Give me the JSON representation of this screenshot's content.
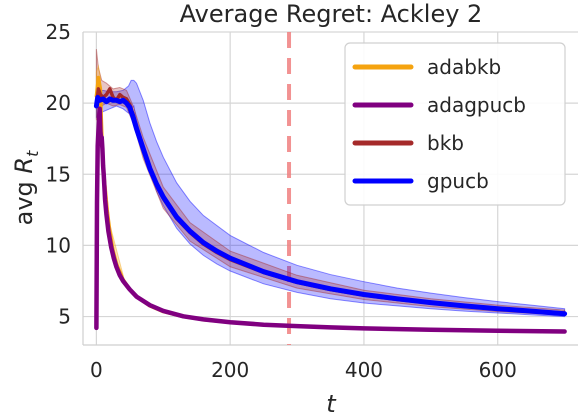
{
  "chart_data": {
    "type": "line",
    "title": "Average Regret: Ackley 2",
    "xlabel": "t",
    "ylabel_main": "avg R",
    "ylabel_sub": "t",
    "xlim": [
      -20,
      720
    ],
    "ylim": [
      3,
      25
    ],
    "xticks": [
      0,
      200,
      400,
      600
    ],
    "yticks": [
      5,
      10,
      15,
      20,
      25
    ],
    "grid": true,
    "legend_position": "top-right",
    "annotations": [
      {
        "type": "vline",
        "x": 288,
        "style": "dashed",
        "color": "#f08080"
      }
    ],
    "series": [
      {
        "name": "adabkb",
        "color": "#f5a30f",
        "points": [
          [
            0,
            20.5
          ],
          [
            3,
            21.8
          ],
          [
            6,
            21.0
          ],
          [
            8,
            18.0
          ],
          [
            10,
            15.5
          ],
          [
            13,
            14.0
          ],
          [
            16,
            12.5
          ],
          [
            20,
            11.0
          ],
          [
            25,
            9.6
          ],
          [
            30,
            8.7
          ],
          [
            40,
            7.6
          ],
          [
            50,
            6.9
          ],
          [
            60,
            6.4
          ],
          [
            80,
            5.75
          ],
          [
            100,
            5.35
          ],
          [
            130,
            5.0
          ],
          [
            160,
            4.78
          ],
          [
            200,
            4.6
          ],
          [
            250,
            4.42
          ],
          [
            300,
            4.32
          ],
          [
            350,
            4.23
          ],
          [
            400,
            4.16
          ],
          [
            500,
            4.06
          ],
          [
            600,
            4.0
          ],
          [
            700,
            3.94
          ]
        ]
      },
      {
        "name": "adagpucb",
        "color": "#800080",
        "points": [
          [
            0,
            4.2
          ],
          [
            1,
            13.0
          ],
          [
            2,
            17.0
          ],
          [
            4,
            19.0
          ],
          [
            5,
            19.6
          ],
          [
            6,
            18.0
          ],
          [
            7,
            17.5
          ],
          [
            8,
            17.6
          ],
          [
            9,
            16.8
          ],
          [
            10,
            15.6
          ],
          [
            11,
            15.0
          ],
          [
            13,
            13.2
          ],
          [
            15,
            12.2
          ],
          [
            18,
            11.0
          ],
          [
            22,
            9.9
          ],
          [
            26,
            9.1
          ],
          [
            30,
            8.5
          ],
          [
            35,
            7.9
          ],
          [
            40,
            7.5
          ],
          [
            50,
            6.9
          ],
          [
            60,
            6.4
          ],
          [
            80,
            5.8
          ],
          [
            100,
            5.4
          ],
          [
            130,
            5.02
          ],
          [
            160,
            4.8
          ],
          [
            200,
            4.6
          ],
          [
            250,
            4.43
          ],
          [
            300,
            4.33
          ],
          [
            350,
            4.24
          ],
          [
            400,
            4.17
          ],
          [
            500,
            4.07
          ],
          [
            600,
            4.0
          ],
          [
            700,
            3.95
          ]
        ]
      },
      {
        "name": "bkb",
        "color": "#a52a2a",
        "points": [
          [
            0,
            19.8
          ],
          [
            3,
            21.0
          ],
          [
            6,
            20.6
          ],
          [
            10,
            20.4
          ],
          [
            15,
            20.6
          ],
          [
            20,
            21.0
          ],
          [
            25,
            20.4
          ],
          [
            30,
            20.2
          ],
          [
            35,
            20.6
          ],
          [
            40,
            20.4
          ],
          [
            45,
            20.3
          ],
          [
            50,
            19.9
          ],
          [
            55,
            19.2
          ],
          [
            60,
            18.3
          ],
          [
            70,
            16.8
          ],
          [
            80,
            15.3
          ],
          [
            90,
            14.2
          ],
          [
            100,
            13.3
          ],
          [
            120,
            11.9
          ],
          [
            140,
            10.9
          ],
          [
            160,
            10.1
          ],
          [
            180,
            9.5
          ],
          [
            200,
            9.0
          ],
          [
            250,
            8.1
          ],
          [
            300,
            7.4
          ],
          [
            350,
            6.9
          ],
          [
            400,
            6.5
          ],
          [
            450,
            6.2
          ],
          [
            500,
            5.95
          ],
          [
            550,
            5.72
          ],
          [
            600,
            5.55
          ],
          [
            650,
            5.4
          ],
          [
            700,
            5.25
          ]
        ]
      },
      {
        "name": "gpucb",
        "color": "#0000ff",
        "points": [
          [
            0,
            19.8
          ],
          [
            2,
            20.4
          ],
          [
            5,
            20.2
          ],
          [
            10,
            20.3
          ],
          [
            15,
            20.1
          ],
          [
            20,
            20.3
          ],
          [
            25,
            20.2
          ],
          [
            30,
            20.2
          ],
          [
            35,
            20.1
          ],
          [
            40,
            20.2
          ],
          [
            45,
            20.0
          ],
          [
            50,
            19.7
          ],
          [
            55,
            19.0
          ],
          [
            60,
            18.2
          ],
          [
            70,
            16.8
          ],
          [
            80,
            15.4
          ],
          [
            90,
            14.3
          ],
          [
            100,
            13.4
          ],
          [
            120,
            12.0
          ],
          [
            140,
            11.0
          ],
          [
            160,
            10.2
          ],
          [
            180,
            9.6
          ],
          [
            200,
            9.1
          ],
          [
            250,
            8.15
          ],
          [
            300,
            7.45
          ],
          [
            350,
            6.95
          ],
          [
            400,
            6.55
          ],
          [
            450,
            6.25
          ],
          [
            500,
            5.98
          ],
          [
            550,
            5.75
          ],
          [
            600,
            5.55
          ],
          [
            650,
            5.38
          ],
          [
            700,
            5.2
          ]
        ]
      }
    ],
    "bands": [
      {
        "series": "gpucb",
        "color": "#0000ff",
        "points": [
          [
            0,
            19.0,
            20.8
          ],
          [
            10,
            19.4,
            20.9
          ],
          [
            20,
            19.6,
            20.8
          ],
          [
            30,
            19.8,
            20.8
          ],
          [
            40,
            19.6,
            20.9
          ],
          [
            48,
            19.3,
            21.2
          ],
          [
            52,
            19.6,
            21.6
          ],
          [
            56,
            19.8,
            21.6
          ],
          [
            60,
            18.8,
            21.4
          ],
          [
            70,
            17.2,
            20.2
          ],
          [
            80,
            15.3,
            18.6
          ],
          [
            90,
            13.8,
            17.3
          ],
          [
            100,
            12.8,
            16.2
          ],
          [
            120,
            11.2,
            14.4
          ],
          [
            140,
            10.1,
            13.1
          ],
          [
            160,
            9.3,
            12.1
          ],
          [
            180,
            8.7,
            11.4
          ],
          [
            200,
            8.2,
            10.7
          ],
          [
            250,
            7.3,
            9.5
          ],
          [
            300,
            6.7,
            8.6
          ],
          [
            350,
            6.25,
            7.95
          ],
          [
            400,
            5.95,
            7.45
          ],
          [
            450,
            5.75,
            7.0
          ],
          [
            500,
            5.55,
            6.65
          ],
          [
            550,
            5.38,
            6.33
          ],
          [
            600,
            5.25,
            6.05
          ],
          [
            650,
            5.12,
            5.8
          ],
          [
            700,
            5.0,
            5.55
          ]
        ]
      },
      {
        "series": "bkb",
        "color": "#a52a2a",
        "points": [
          [
            0,
            18.8,
            23.8
          ],
          [
            3,
            19.6,
            22.5
          ],
          [
            8,
            19.8,
            21.6
          ],
          [
            15,
            20.0,
            21.4
          ],
          [
            25,
            19.8,
            21.0
          ],
          [
            35,
            19.9,
            21.1
          ],
          [
            45,
            19.7,
            20.9
          ],
          [
            55,
            18.6,
            19.8
          ],
          [
            70,
            16.1,
            17.6
          ],
          [
            100,
            12.6,
            14.1
          ],
          [
            140,
            10.3,
            11.6
          ],
          [
            200,
            8.5,
            9.6
          ],
          [
            300,
            7.0,
            7.9
          ],
          [
            400,
            6.2,
            6.85
          ],
          [
            500,
            5.7,
            6.25
          ],
          [
            600,
            5.35,
            5.8
          ],
          [
            700,
            5.08,
            5.45
          ]
        ]
      },
      {
        "series": "adabkb",
        "color": "#f5a30f",
        "points": [
          [
            0,
            19.6,
            22.2
          ],
          [
            3,
            20.6,
            22.6
          ],
          [
            6,
            19.8,
            21.8
          ],
          [
            8,
            17.0,
            19.0
          ],
          [
            12,
            14.2,
            15.6
          ],
          [
            20,
            10.8,
            11.5
          ],
          [
            40,
            7.4,
            7.9
          ]
        ]
      }
    ]
  }
}
